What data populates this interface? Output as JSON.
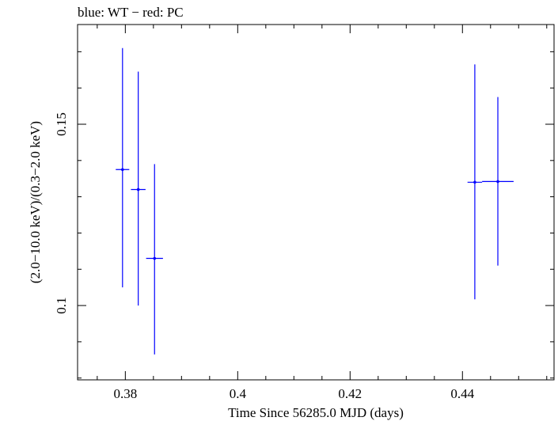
{
  "chart_data": {
    "type": "scatter",
    "title": "blue: WT − red: PC",
    "xlabel": "Time Since 56285.0 MJD (days)",
    "ylabel": "(2.0−10.0 keV)/(0.3−2.0 keV)",
    "xlim": [
      0.3715,
      0.4563
    ],
    "ylim": [
      0.0795,
      0.1775
    ],
    "x_ticks": [
      0.38,
      0.4,
      0.42,
      0.44
    ],
    "x_tick_labels": [
      "0.38",
      "0.4",
      "0.42",
      "0.44"
    ],
    "y_ticks": [
      0.1,
      0.15
    ],
    "y_tick_labels": [
      "0.1",
      "0.15"
    ],
    "x_minor_step": 0.005,
    "y_minor_step": 0.01,
    "series": [
      {
        "name": "WT",
        "color": "#0000ff",
        "points": [
          {
            "x": 0.3795,
            "xerr": 0.0012,
            "y": 0.1375,
            "ylo": 0.105,
            "yhi": 0.171
          },
          {
            "x": 0.3823,
            "xerr": 0.0013,
            "y": 0.132,
            "ylo": 0.1,
            "yhi": 0.1645
          },
          {
            "x": 0.3852,
            "xerr": 0.0015,
            "y": 0.113,
            "ylo": 0.0865,
            "yhi": 0.139
          },
          {
            "x": 0.4422,
            "xerr": 0.0013,
            "y": 0.134,
            "ylo": 0.1017,
            "yhi": 0.1665
          },
          {
            "x": 0.4463,
            "xerr": 0.0028,
            "y": 0.1342,
            "ylo": 0.111,
            "yhi": 0.1575
          }
        ]
      },
      {
        "name": "PC",
        "color": "#ff0000",
        "points": []
      }
    ]
  }
}
